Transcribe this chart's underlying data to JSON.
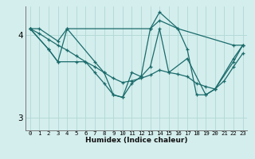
{
  "title": "",
  "xlabel": "Humidex (Indice chaleur)",
  "bg_color": "#d4eeed",
  "grid_color": "#b0d8d5",
  "line_color": "#1a6b6b",
  "xlim": [
    -0.5,
    23.5
  ],
  "ylim": [
    2.85,
    4.35
  ],
  "xticks": [
    0,
    1,
    2,
    3,
    4,
    5,
    6,
    7,
    8,
    9,
    10,
    11,
    12,
    13,
    14,
    15,
    16,
    17,
    18,
    19,
    20,
    21,
    22,
    23
  ],
  "yticks": [
    3,
    4
  ],
  "lines": [
    {
      "x": [
        0,
        1,
        3,
        4,
        13,
        14,
        16,
        22,
        23
      ],
      "y": [
        4.08,
        4.08,
        3.93,
        4.08,
        4.08,
        4.28,
        4.08,
        3.88,
        3.88
      ]
    },
    {
      "x": [
        0,
        2,
        3,
        5,
        6,
        7,
        8,
        9,
        10,
        11,
        12,
        13,
        14,
        15,
        17,
        19,
        20,
        22,
        23
      ],
      "y": [
        4.08,
        3.83,
        3.68,
        3.68,
        3.68,
        3.55,
        3.42,
        3.28,
        3.25,
        3.42,
        3.5,
        3.62,
        4.08,
        3.55,
        3.72,
        3.28,
        3.35,
        3.68,
        3.88
      ]
    },
    {
      "x": [
        0,
        2,
        3,
        4,
        7,
        8,
        9,
        10,
        11,
        12,
        13,
        14,
        16,
        17,
        18,
        19,
        20,
        22,
        23
      ],
      "y": [
        4.08,
        3.83,
        3.68,
        4.08,
        3.68,
        3.55,
        3.28,
        3.25,
        3.55,
        3.5,
        4.08,
        4.18,
        4.08,
        3.83,
        3.28,
        3.28,
        3.35,
        3.72,
        3.88
      ]
    },
    {
      "x": [
        0,
        1,
        2,
        3,
        4,
        5,
        6,
        7,
        8,
        9,
        10,
        11,
        12,
        13,
        14,
        15,
        16,
        17,
        18,
        19,
        20,
        21,
        22,
        23
      ],
      "y": [
        4.08,
        4.02,
        3.95,
        3.88,
        3.82,
        3.75,
        3.68,
        3.62,
        3.55,
        3.48,
        3.43,
        3.45,
        3.48,
        3.52,
        3.58,
        3.55,
        3.53,
        3.5,
        3.42,
        3.38,
        3.35,
        3.45,
        3.62,
        3.78
      ]
    }
  ]
}
